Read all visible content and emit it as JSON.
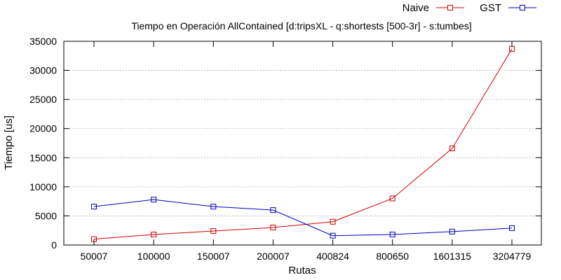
{
  "chart_data": {
    "type": "line",
    "title": "Tiempo en Operación AllContained [d:tripsXL - q:shortests [500-3r] - s:tumbes]",
    "xlabel": "Rutas",
    "ylabel": "Tiempo [us]",
    "categories": [
      "50007",
      "100000",
      "150007",
      "200007",
      "400824",
      "800650",
      "1601315",
      "3204779"
    ],
    "ylim": [
      0,
      35000
    ],
    "yticks": [
      0,
      5000,
      10000,
      15000,
      20000,
      25000,
      30000,
      35000
    ],
    "grid": true,
    "legend_position": "top-right",
    "series": [
      {
        "name": "Naive",
        "color": "#cc0000",
        "marker": "open-square",
        "values": [
          1000,
          1800,
          2400,
          3000,
          4000,
          8000,
          16600,
          33700
        ]
      },
      {
        "name": "GST",
        "color": "#0000bb",
        "marker": "open-square",
        "values": [
          6600,
          7800,
          6600,
          6000,
          1600,
          1800,
          2300,
          2900
        ]
      }
    ]
  }
}
